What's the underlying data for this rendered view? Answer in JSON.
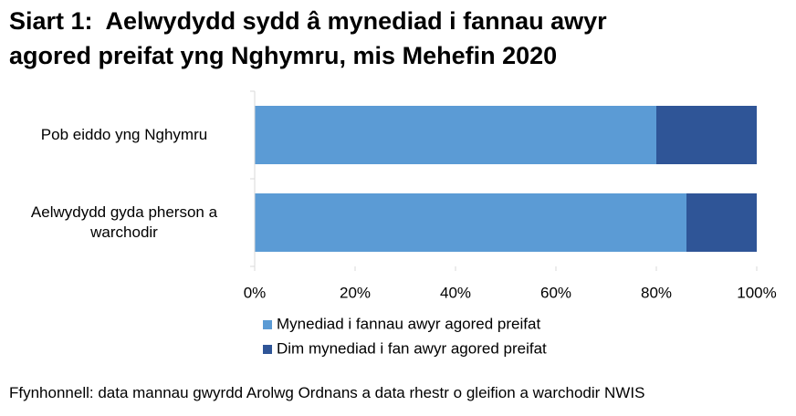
{
  "chart_data": {
    "type": "stacked-bar-horizontal",
    "title": "Siart 1:  Aelwydydd sydd â mynediad i fannau awyr agored preifat yng Nghymru, mis Mehefin 2020",
    "categories": [
      "Pob eiddo yng Nghymru",
      "Aelwydydd gyda pherson a warchodir"
    ],
    "series": [
      {
        "name": "Mynediad i fannau awyr agored preifat",
        "color": "#5b9bd5",
        "values": [
          80,
          86
        ]
      },
      {
        "name": "Dim mynediad i fan awyr agored preifat",
        "color": "#2f5597",
        "values": [
          20,
          14
        ]
      }
    ],
    "xlim": [
      0,
      100
    ],
    "xticks": [
      {
        "value": 0,
        "label": "0%"
      },
      {
        "value": 20,
        "label": "20%"
      },
      {
        "value": 40,
        "label": "40%"
      },
      {
        "value": 60,
        "label": "60%"
      },
      {
        "value": 80,
        "label": "80%"
      },
      {
        "value": 100,
        "label": "100%"
      }
    ],
    "legend": "bottom",
    "source": "Ffynhonnell: data mannau gwyrdd Arolwg Ordnans a data rhestr o gleifion a warchodir NWIS"
  }
}
